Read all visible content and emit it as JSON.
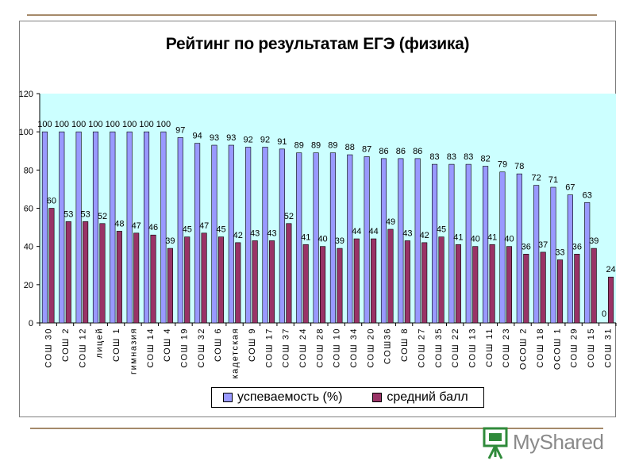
{
  "chart_data": {
    "type": "bar",
    "title": "Рейтинг по результатам ЕГЭ (физика)",
    "categories": [
      "СОШ 30",
      "СОШ 2",
      "СОШ 12",
      "лицей",
      "СОШ 1",
      "гимназия",
      "СОШ 14",
      "СОШ 4",
      "СОШ 19",
      "СОШ 32",
      "СОШ 6",
      "кадетская",
      "СОШ 9",
      "СОШ 17",
      "СОШ 37",
      "СОШ 24",
      "СОШ 28",
      "СОШ 10",
      "СОШ 34",
      "СОШ 20",
      "СОШ36",
      "СОШ 8",
      "СОШ 27",
      "СОШ 35",
      "СОШ 22",
      "СОШ 13",
      "СОШ 11",
      "СОШ 23",
      "ОСОШ 2",
      "СОШ 18",
      "ОСОШ 1",
      "СОШ 29",
      "СОШ 15",
      "СОШ 31"
    ],
    "series": [
      {
        "name": "успеваемость (%)",
        "color": "#9999ff",
        "values": [
          100,
          100,
          100,
          100,
          100,
          100,
          100,
          100,
          97,
          94,
          93,
          93,
          92,
          92,
          91,
          89,
          89,
          89,
          88,
          87,
          86,
          86,
          86,
          83,
          83,
          83,
          82,
          79,
          78,
          72,
          71,
          67,
          63,
          0
        ]
      },
      {
        "name": "средний балл",
        "color": "#993366",
        "values": [
          60,
          53,
          53,
          52,
          48,
          47,
          46,
          39,
          45,
          47,
          45,
          42,
          43,
          43,
          52,
          41,
          40,
          39,
          44,
          44,
          49,
          43,
          42,
          45,
          41,
          40,
          41,
          40,
          36,
          37,
          33,
          36,
          39,
          24
        ]
      }
    ],
    "ylim": [
      0,
      120
    ],
    "yticks": [
      0,
      20,
      40,
      60,
      80,
      100,
      120
    ],
    "grid": false,
    "legend_position": "bottom",
    "plot_background": "#ccffff"
  },
  "watermark": {
    "text": "MyShared"
  }
}
